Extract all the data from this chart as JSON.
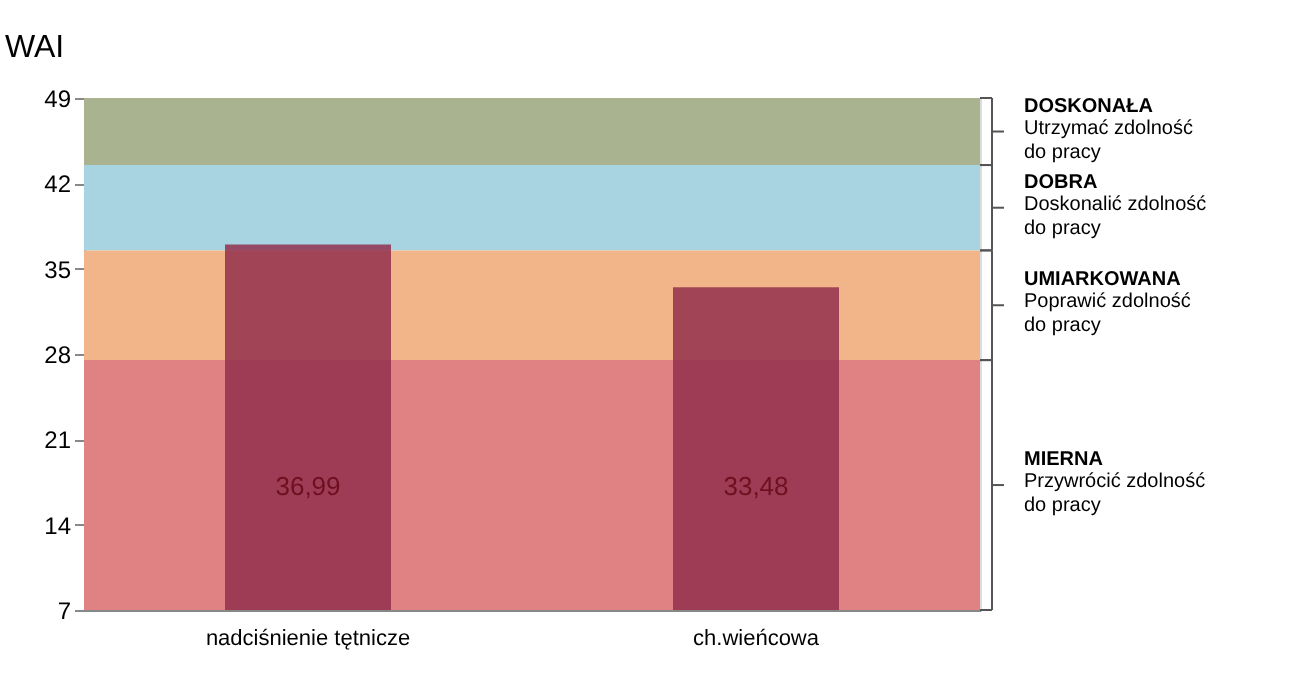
{
  "chart_data": {
    "type": "bar",
    "ylabel": "WAI",
    "categories": [
      "nadciśnienie tętnicze",
      "ch.wieńcowa"
    ],
    "values": [
      36.99,
      33.48
    ],
    "color": "#93304e",
    "value_labels": [
      "36,99",
      "33,48"
    ],
    "ylim": [
      7,
      49
    ],
    "yticks": [
      7,
      14,
      21,
      28,
      35,
      42,
      49
    ],
    "bands": [
      {
        "axis": "y",
        "from": 43.5,
        "to": 49,
        "color": "#a9b38f",
        "label": "DOSKONAŁA\nUtrzymać zdolność\ndo pracy"
      },
      {
        "axis": "y",
        "from": 36.5,
        "to": 43.5,
        "color": "#a8d4e2",
        "label": "DOBRA\nDoskonalić zdolność\ndo pracy"
      },
      {
        "axis": "y",
        "from": 27.5,
        "to": 36.5,
        "color": "#f1b589",
        "label": "UMIARKOWANA\nPoprawić zdolność\ndo pracy"
      },
      {
        "axis": "y",
        "from": 7,
        "to": 27.5,
        "color": "#e08183",
        "label": "MIERNA\nPrzywrócić zdolność\ndo pracy"
      }
    ]
  }
}
